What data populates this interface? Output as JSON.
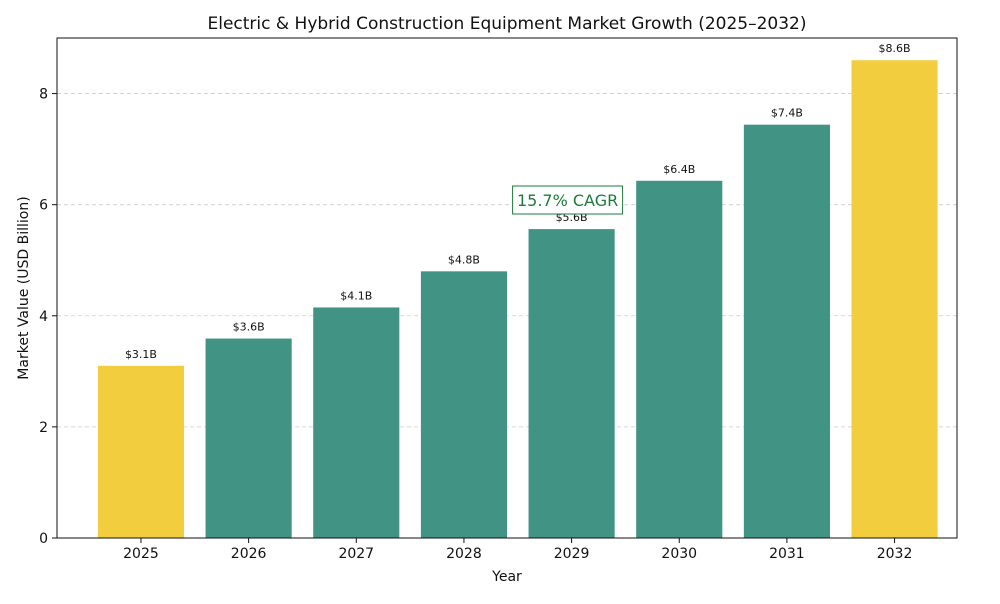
{
  "chart_data": {
    "type": "bar",
    "title": "Electric & Hybrid Construction Equipment Market Growth (2025–2032)",
    "xlabel": "Year",
    "ylabel": "Market Value (USD Billion)",
    "categories": [
      "2025",
      "2026",
      "2027",
      "2028",
      "2029",
      "2030",
      "2031",
      "2032"
    ],
    "values": [
      3.1,
      3.59,
      4.15,
      4.8,
      5.56,
      6.43,
      7.44,
      8.6
    ],
    "data_labels": [
      "$3.1B",
      "$3.6B",
      "$4.1B",
      "$4.8B",
      "$5.6B",
      "$6.4B",
      "$7.4B",
      "$8.6B"
    ],
    "highlighted": [
      "2025",
      "2032"
    ],
    "ylim": [
      0,
      9
    ],
    "yticks": [
      0,
      2,
      4,
      6,
      8
    ],
    "grid": "y-dashed",
    "annotation": {
      "text": "15.7% CAGR",
      "color": "#1e7a3c"
    },
    "colors": {
      "bar": "#419384",
      "highlight": "#f2ce3f",
      "grid": "#cccccc"
    }
  }
}
